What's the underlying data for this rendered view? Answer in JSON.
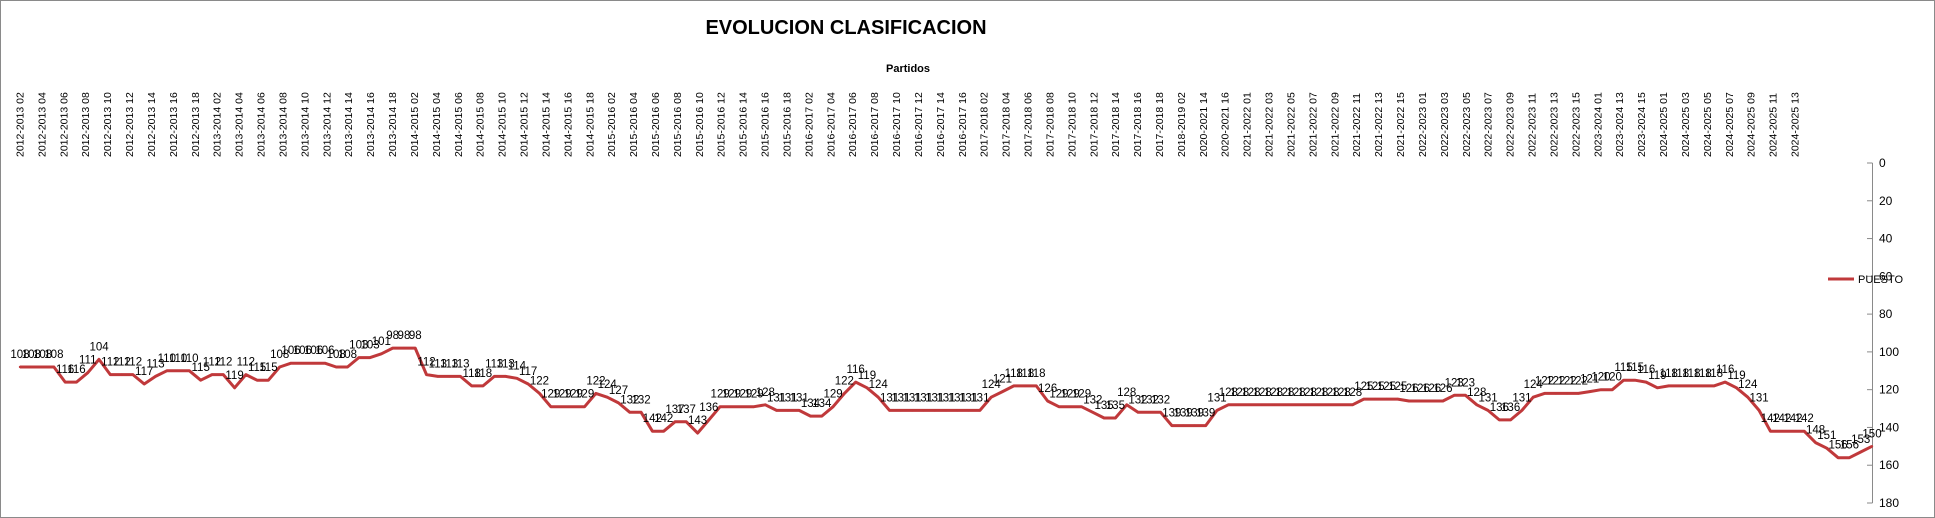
{
  "chart_data": {
    "type": "line",
    "title": "EVOLUCION CLASIFICACION",
    "xlabel": "Partidos",
    "ylabel": "",
    "y_reversed": true,
    "ylim": [
      0,
      180
    ],
    "y_ticks": [
      0,
      20,
      40,
      60,
      80,
      100,
      120,
      140,
      160,
      180
    ],
    "grid": false,
    "legend_position": "right",
    "x_tick_labels": [
      "2012-2013 02",
      "2012-2013 04",
      "2012-2013 06",
      "2012-2013 08",
      "2012-2013 10",
      "2012-2013 12",
      "2012-2013 14",
      "2012-2013 16",
      "2012-2013 18",
      "2013-2014 02",
      "2013-2014 04",
      "2013-2014 06",
      "2013-2014 08",
      "2013-2014 10",
      "2013-2014 12",
      "2013-2014 14",
      "2013-2014 16",
      "2013-2014 18",
      "2014-2015 02",
      "2014-2015 04",
      "2014-2015 06",
      "2014-2015 08",
      "2014-2015 10",
      "2014-2015 12",
      "2014-2015 14",
      "2014-2015 16",
      "2014-2015 18",
      "2015-2016 02",
      "2015-2016 04",
      "2015-2016 06",
      "2015-2016 08",
      "2015-2016 10",
      "2015-2016 12",
      "2015-2016 14",
      "2015-2016 16",
      "2015-2016 18",
      "2016-2017 02",
      "2016-2017 04",
      "2016-2017 06",
      "2016-2017 08",
      "2016-2017 10",
      "2016-2017 12",
      "2016-2017 14",
      "2016-2017 16",
      "2017-2018 02",
      "2017-2018 04",
      "2017-2018 06",
      "2017-2018 08",
      "2017-2018 10",
      "2017-2018 12",
      "2017-2018 14",
      "2017-2018 16",
      "2017-2018 18",
      "2018-2019 02",
      "2020-2021 14",
      "2020-2021 16",
      "2021-2022 01",
      "2021-2022 03",
      "2021-2022 05",
      "2021-2022 07",
      "2021-2022 09",
      "2021-2022 11",
      "2021-2022 13",
      "2021-2022 15",
      "2022-2023 01",
      "2022-2023 03",
      "2022-2023 05",
      "2022-2023 07",
      "2022-2023 09",
      "2022-2023 11",
      "2022-2023 13",
      "2022-2023 15",
      "2023-2024 01",
      "2023-2024 13",
      "2023-2024 15",
      "2024-2025 01",
      "2024-2025 03",
      "2024-2025 05",
      "2024-2025 07",
      "2024-2025 09",
      "2024-2025 11",
      "2024-2025 13"
    ],
    "series": [
      {
        "name": "PUESTO",
        "color": "#c0393b",
        "values": [
          108,
          108,
          108,
          108,
          116,
          116,
          111,
          104,
          112,
          112,
          112,
          117,
          113,
          110,
          110,
          110,
          115,
          112,
          112,
          119,
          112,
          115,
          115,
          108,
          106,
          106,
          106,
          106,
          108,
          108,
          103,
          103,
          101,
          98,
          98,
          98,
          112,
          113,
          113,
          113,
          118,
          118,
          113,
          113,
          114,
          117,
          122,
          129,
          129,
          129,
          129,
          122,
          124,
          127,
          132,
          132,
          142,
          142,
          137,
          137,
          143,
          136,
          129,
          129,
          129,
          129,
          128,
          131,
          131,
          131,
          134,
          134,
          129,
          122,
          116,
          119,
          124,
          131,
          131,
          131,
          131,
          131,
          131,
          131,
          131,
          131,
          124,
          121,
          118,
          118,
          118,
          126,
          129,
          129,
          129,
          132,
          135,
          135,
          128,
          132,
          132,
          132,
          139,
          139,
          139,
          139,
          131,
          128,
          128,
          128,
          128,
          128,
          128,
          128,
          128,
          128,
          128,
          128,
          128,
          125,
          125,
          125,
          125,
          126,
          126,
          126,
          126,
          123,
          123,
          128,
          131,
          136,
          136,
          131,
          124,
          122,
          122,
          122,
          122,
          121,
          120,
          120,
          115,
          115,
          116,
          119,
          118,
          118,
          118,
          118,
          118,
          116,
          119,
          124,
          131,
          142,
          142,
          142,
          142,
          148,
          151,
          156,
          156,
          153,
          150
        ]
      }
    ]
  }
}
